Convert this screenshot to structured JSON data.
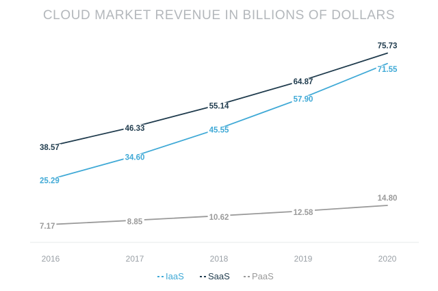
{
  "chart_data": {
    "type": "line",
    "title": "CLOUD MARKET REVENUE IN BILLIONS OF DOLLARS",
    "xlabel": "",
    "ylabel": "",
    "categories": [
      "2016",
      "2017",
      "2018",
      "2019",
      "2020"
    ],
    "series": [
      {
        "name": "IaaS",
        "color": "#3fa9d6",
        "values": [
          25.29,
          34.6,
          45.55,
          57.9,
          71.55
        ],
        "labels": [
          "25.29",
          "34.60",
          "45.55",
          "57.90",
          "71.55"
        ]
      },
      {
        "name": "SaaS",
        "color": "#1f3b4d",
        "values": [
          38.57,
          46.33,
          55.14,
          64.87,
          75.73
        ],
        "labels": [
          "38.57",
          "46.33",
          "55.14",
          "64.87",
          "75.73"
        ]
      },
      {
        "name": "PaaS",
        "color": "#9a9a9a",
        "values": [
          7.17,
          8.85,
          10.62,
          12.58,
          14.8
        ],
        "labels": [
          "7.17",
          "8.85",
          "10.62",
          "12.58",
          "14.80"
        ]
      }
    ],
    "ylim": [
      0,
      80
    ],
    "grid": false,
    "legend": "bottom-center"
  }
}
